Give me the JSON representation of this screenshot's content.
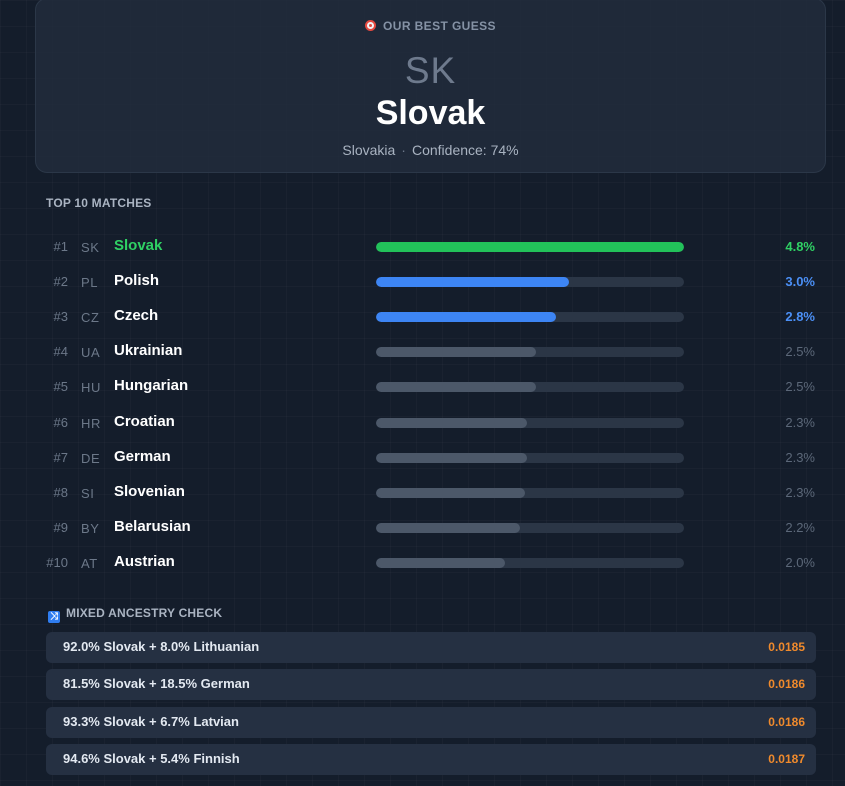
{
  "best_guess": {
    "label": "OUR BEST GUESS",
    "icon": "target-icon",
    "code": "SK",
    "name": "Slovak",
    "country": "Slovakia",
    "separator": "·",
    "confidence": "Confidence: 74%"
  },
  "top_matches": {
    "title": "TOP 10 MATCHES",
    "items": [
      {
        "rank": "#1",
        "code": "SK",
        "name": "Slovak",
        "percent": "4.8%",
        "level": 1.0,
        "style": "green"
      },
      {
        "rank": "#2",
        "code": "PL",
        "name": "Polish",
        "percent": "3.0%",
        "level": 0.625,
        "style": "blue"
      },
      {
        "rank": "#3",
        "code": "CZ",
        "name": "Czech",
        "percent": "2.8%",
        "level": 0.583,
        "style": "blue"
      },
      {
        "rank": "#4",
        "code": "UA",
        "name": "Ukrainian",
        "percent": "2.5%",
        "level": 0.521,
        "style": "gray"
      },
      {
        "rank": "#5",
        "code": "HU",
        "name": "Hungarian",
        "percent": "2.5%",
        "level": 0.521,
        "style": "gray"
      },
      {
        "rank": "#6",
        "code": "HR",
        "name": "Croatian",
        "percent": "2.3%",
        "level": 0.49,
        "style": "gray"
      },
      {
        "rank": "#7",
        "code": "DE",
        "name": "German",
        "percent": "2.3%",
        "level": 0.49,
        "style": "gray"
      },
      {
        "rank": "#8",
        "code": "SI",
        "name": "Slovenian",
        "percent": "2.3%",
        "level": 0.484,
        "style": "gray"
      },
      {
        "rank": "#9",
        "code": "BY",
        "name": "Belarusian",
        "percent": "2.2%",
        "level": 0.469,
        "style": "gray"
      },
      {
        "rank": "#10",
        "code": "AT",
        "name": "Austrian",
        "percent": "2.0%",
        "level": 0.419,
        "style": "gray"
      }
    ]
  },
  "mixed_ancestry": {
    "title": "MIXED ANCESTRY CHECK",
    "icon": "shuffle-icon",
    "items": [
      {
        "label": "92.0% Slovak + 8.0% Lithuanian",
        "score": "0.0185"
      },
      {
        "label": "81.5% Slovak + 18.5% German",
        "score": "0.0186"
      },
      {
        "label": "93.3% Slovak + 6.7% Latvian",
        "score": "0.0186"
      },
      {
        "label": "94.6% Slovak + 5.4% Finnish",
        "score": "0.0187"
      }
    ]
  },
  "colors": {
    "top_match": "#22c25a",
    "runner_up": "#3d85f4",
    "other": "#4c5869",
    "score": "#f08a2c"
  }
}
